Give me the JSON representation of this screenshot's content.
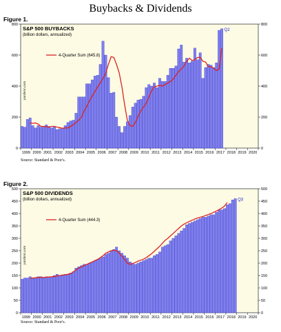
{
  "page_title": "Buybacks & Dividends",
  "watermark": "yardeni.com",
  "colors": {
    "bar": "#7f7fee",
    "bar_edge": "#3232c8",
    "line": "#dd2222",
    "plot_bg": "#fdfbe4",
    "end_label": "#2020d0"
  },
  "chart_data": [
    {
      "type": "bar",
      "figure_label": "Figure 1.",
      "title": "S&P 500 BUYBACKS",
      "subtitle": "(billion dollars, annualized)",
      "source": "Source: Standard & Poor's.",
      "legend": "4-Quarter Sum (645.8)",
      "end_label": "Q2",
      "ylim": [
        0,
        800
      ],
      "yticks": [
        0,
        200,
        400,
        600,
        800
      ],
      "xticks": [
        "1999",
        "2000",
        "2001",
        "2002",
        "2003",
        "2004",
        "2005",
        "2006",
        "2007",
        "2008",
        "2009",
        "2010",
        "2011",
        "2012",
        "2013",
        "2014",
        "2015",
        "2016",
        "2017",
        "2018",
        "2019",
        "2020"
      ],
      "x_start": 1999,
      "x_end": 2021,
      "series": [
        {
          "kind": "bar",
          "quarters_from": "1999-Q1",
          "values": [
            140,
            135,
            185,
            195,
            145,
            130,
            145,
            135,
            140,
            150,
            140,
            130,
            140,
            120,
            125,
            130,
            145,
            165,
            175,
            180,
            225,
            330,
            330,
            330,
            415,
            415,
            440,
            465,
            470,
            540,
            690,
            600,
            455,
            355,
            360,
            200,
            140,
            100,
            140,
            170,
            210,
            265,
            290,
            310,
            315,
            335,
            390,
            410,
            400,
            420,
            390,
            450,
            430,
            430,
            470,
            515,
            515,
            530,
            640,
            665,
            555,
            580,
            550,
            560,
            645,
            570,
            615,
            450,
            520,
            540,
            535,
            520,
            550,
            760,
            770
          ]
        },
        {
          "kind": "line",
          "name": "4-Quarter Sum",
          "quarters_from": "1999-Q4",
          "values": [
            162,
            160,
            162,
            155,
            140,
            140,
            138,
            135,
            140,
            140,
            135,
            132,
            128,
            130,
            130,
            140,
            150,
            165,
            180,
            200,
            240,
            270,
            305,
            335,
            365,
            395,
            420,
            450,
            480,
            540,
            590,
            585,
            540,
            485,
            395,
            280,
            180,
            145,
            140,
            165,
            205,
            240,
            265,
            290,
            330,
            370,
            395,
            400,
            405,
            400,
            410,
            420,
            430,
            445,
            470,
            495,
            510,
            530,
            560,
            580,
            565,
            570,
            585,
            585,
            560,
            555,
            525,
            525,
            515,
            500,
            510,
            645
          ]
        }
      ]
    },
    {
      "type": "bar",
      "figure_label": "Figure 2.",
      "title": "S&P 500 DIVIDENDS",
      "subtitle": "(billion dollars, annualized)",
      "source": "Source: Standard & Poor's.",
      "legend": "4-Quarter Sum (444.3)",
      "end_label": "Q3",
      "ylim": [
        0,
        500
      ],
      "yticks": [
        0,
        50,
        100,
        150,
        200,
        250,
        300,
        350,
        400,
        450,
        500
      ],
      "xticks": [
        "1999",
        "2000",
        "2001",
        "2002",
        "2003",
        "2004",
        "2005",
        "2006",
        "2007",
        "2008",
        "2009",
        "2010",
        "2011",
        "2012",
        "2013",
        "2014",
        "2015",
        "2016",
        "2017",
        "2018",
        "2019",
        "2020"
      ],
      "x_start": 1999,
      "x_end": 2021,
      "series": [
        {
          "kind": "bar",
          "quarters_from": "1999-Q1",
          "values": [
            135,
            140,
            140,
            145,
            140,
            140,
            145,
            145,
            140,
            145,
            145,
            145,
            150,
            155,
            150,
            150,
            155,
            155,
            160,
            165,
            180,
            185,
            190,
            195,
            195,
            200,
            205,
            210,
            215,
            220,
            225,
            235,
            240,
            250,
            255,
            265,
            250,
            240,
            230,
            220,
            205,
            200,
            195,
            200,
            205,
            210,
            215,
            220,
            220,
            230,
            235,
            245,
            265,
            270,
            275,
            290,
            300,
            310,
            320,
            330,
            340,
            355,
            360,
            365,
            370,
            375,
            380,
            385,
            385,
            390,
            395,
            395,
            405,
            415,
            415,
            420,
            435,
            440,
            455,
            460
          ]
        },
        {
          "kind": "line",
          "name": "4-Quarter Sum",
          "quarters_from": "1999-Q4",
          "values": [
            138,
            140,
            141,
            142,
            143,
            142,
            143,
            144,
            145,
            146,
            148,
            150,
            152,
            153,
            155,
            157,
            165,
            172,
            180,
            185,
            190,
            195,
            200,
            205,
            210,
            215,
            222,
            230,
            240,
            245,
            250,
            252,
            250,
            240,
            228,
            215,
            200,
            195,
            198,
            203,
            208,
            212,
            216,
            222,
            230,
            238,
            248,
            258,
            268,
            280,
            292,
            300,
            310,
            320,
            330,
            340,
            350,
            357,
            363,
            368,
            373,
            378,
            382,
            385,
            388,
            392,
            396,
            400,
            405,
            410,
            416,
            422,
            430,
            444
          ]
        }
      ]
    }
  ]
}
